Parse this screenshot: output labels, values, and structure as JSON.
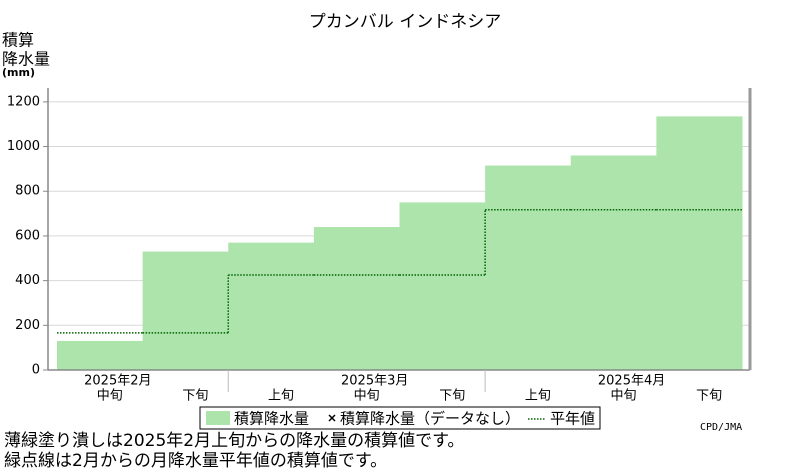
{
  "chart_data": {
    "type": "bar",
    "title": "プカンバル インドネシア",
    "ylabel": [
      "積算",
      "降水量",
      "(mm)"
    ],
    "categories": [
      "中旬",
      "下旬",
      "上旬",
      "中旬",
      "下旬",
      "上旬",
      "中旬",
      "下旬"
    ],
    "months": [
      "2025年2月",
      "2025年3月",
      "2025年4月"
    ],
    "series": [
      {
        "name": "積算降水量",
        "color": "#ade4ab",
        "values": [
          130,
          530,
          570,
          640,
          750,
          915,
          960,
          1135
        ]
      },
      {
        "name": "積算降水量（データなし）",
        "color": "#000000",
        "values": [
          null,
          null,
          null,
          null,
          null,
          null,
          null,
          null
        ]
      },
      {
        "name": "平年値",
        "color": "#006400",
        "values": [
          166,
          166,
          425,
          425,
          425,
          717,
          717,
          717
        ]
      }
    ],
    "ylim": [
      0,
      1262
    ],
    "yticks": [
      0,
      200,
      400,
      600,
      800,
      1000,
      1200
    ],
    "grid": true,
    "notes": [
      "薄緑塗り潰しは2025年2月上旬からの降水量の積算値です。",
      "緑点線は2月からの月降水量平年値の積算値です。"
    ],
    "credit": "CPD/JMA"
  }
}
